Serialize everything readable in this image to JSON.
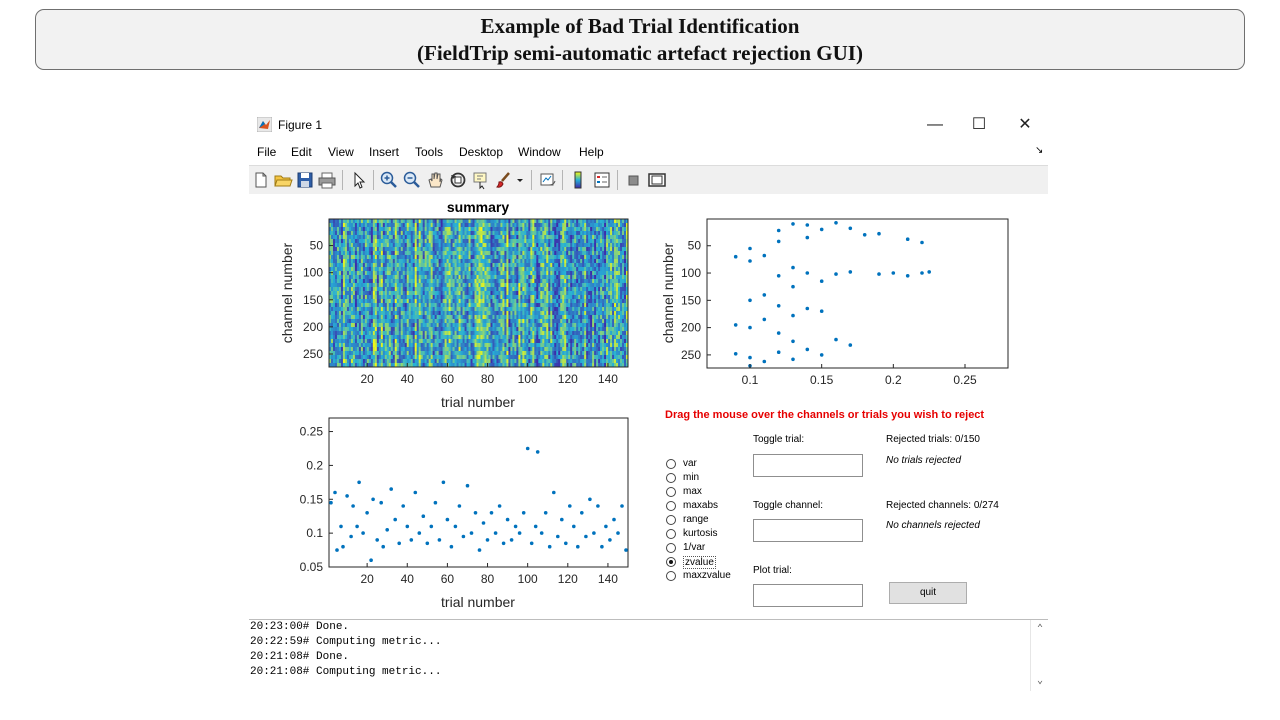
{
  "slide": {
    "title_line1": "Example of Bad Trial Identification",
    "title_line2": "(FieldTrip semi-automatic artefact rejection GUI)"
  },
  "window": {
    "title": "Figure 1",
    "minimize": "—",
    "maximize": "☐",
    "close": "✕"
  },
  "menu": {
    "items": [
      "File",
      "Edit",
      "View",
      "Insert",
      "Tools",
      "Desktop",
      "Window",
      "Help"
    ],
    "dock_arrow": "↘"
  },
  "toolbar": {
    "icons": [
      "new-figure-icon",
      "open-file-icon",
      "save-icon",
      "print-icon",
      "pointer-icon",
      "zoom-in-icon",
      "zoom-out-icon",
      "pan-icon",
      "rotate-3d-icon",
      "data-cursor-icon",
      "brush-icon",
      "link-plot-icon",
      "colorbar-icon",
      "legend-icon",
      "hide-plot-tools-icon",
      "show-plot-tools-icon"
    ]
  },
  "heatmap": {
    "title": "summary",
    "xlabel": "trial number",
    "ylabel": "channel number",
    "xticks": [
      "20",
      "40",
      "60",
      "80",
      "100",
      "120",
      "140"
    ],
    "yticks": [
      "50",
      "100",
      "150",
      "200",
      "250"
    ]
  },
  "panel_channel": {
    "ylabel": "channel number",
    "xticks": [
      "0.1",
      "0.15",
      "0.2",
      "0.25"
    ],
    "yticks": [
      "50",
      "100",
      "150",
      "200",
      "250"
    ]
  },
  "panel_trial": {
    "xlabel": "trial number",
    "xticks": [
      "20",
      "40",
      "60",
      "80",
      "100",
      "120",
      "140"
    ],
    "yticks": [
      "0.25",
      "0.2",
      "0.15",
      "0.1",
      "0.05"
    ]
  },
  "controls": {
    "instruction": "Drag the mouse over the channels or trials you wish to reject",
    "toggle_trial_label": "Toggle trial:",
    "toggle_channel_label": "Toggle channel:",
    "plot_trial_label": "Plot trial:",
    "rejected_trials_label": "Rejected trials: 0/150",
    "no_trials_rejected": "No trials rejected",
    "rejected_channels_label": "Rejected channels: 0/274",
    "no_channels_rejected": "No channels rejected",
    "quit_label": "quit",
    "metrics": [
      "var",
      "min",
      "max",
      "maxabs",
      "range",
      "kurtosis",
      "1/var",
      "zvalue",
      "maxzvalue"
    ],
    "selected_metric": "zvalue",
    "toggle_trial_value": "",
    "toggle_channel_value": "",
    "plot_trial_value": ""
  },
  "console": {
    "lines": [
      "20:23:00# Done.",
      "20:22:59# Computing metric...",
      "20:21:08# Done.",
      "20:21:08# Computing metric..."
    ],
    "scroll_up": "⌃",
    "scroll_down": "⌄"
  },
  "colors": {
    "point": "#0072bd",
    "heat_low": "#3e26a8",
    "heat_mid": "#26b0d6",
    "heat_high": "#f9fb0e",
    "instruction": "#e60000"
  },
  "chart_data": [
    {
      "type": "heatmap",
      "title": "summary",
      "xlabel": "trial number",
      "ylabel": "channel number",
      "xlim": [
        1,
        150
      ],
      "ylim": [
        1,
        274
      ],
      "note_values": "per-trial x per-channel z-value matrix (150 trials x 274 channels)"
    },
    {
      "type": "scatter",
      "title": "",
      "xlabel": "",
      "ylabel": "channel number",
      "xlim": [
        0.07,
        0.28
      ],
      "ylim": [
        1,
        274
      ],
      "y_reversed": true,
      "points": [
        [
          0.13,
          10
        ],
        [
          0.14,
          12
        ],
        [
          0.16,
          8
        ],
        [
          0.15,
          20
        ],
        [
          0.12,
          22
        ],
        [
          0.17,
          18
        ],
        [
          0.19,
          28
        ],
        [
          0.21,
          38
        ],
        [
          0.22,
          44
        ],
        [
          0.18,
          30
        ],
        [
          0.14,
          35
        ],
        [
          0.12,
          42
        ],
        [
          0.1,
          55
        ],
        [
          0.11,
          68
        ],
        [
          0.09,
          70
        ],
        [
          0.1,
          78
        ],
        [
          0.13,
          90
        ],
        [
          0.14,
          100
        ],
        [
          0.12,
          105
        ],
        [
          0.16,
          102
        ],
        [
          0.17,
          98
        ],
        [
          0.19,
          102
        ],
        [
          0.2,
          100
        ],
        [
          0.22,
          100
        ],
        [
          0.225,
          98
        ],
        [
          0.21,
          105
        ],
        [
          0.15,
          115
        ],
        [
          0.13,
          125
        ],
        [
          0.11,
          140
        ],
        [
          0.1,
          150
        ],
        [
          0.12,
          160
        ],
        [
          0.14,
          165
        ],
        [
          0.15,
          170
        ],
        [
          0.13,
          178
        ],
        [
          0.11,
          185
        ],
        [
          0.09,
          195
        ],
        [
          0.1,
          200
        ],
        [
          0.12,
          210
        ],
        [
          0.13,
          225
        ],
        [
          0.16,
          222
        ],
        [
          0.17,
          232
        ],
        [
          0.14,
          240
        ],
        [
          0.12,
          245
        ],
        [
          0.1,
          255
        ],
        [
          0.11,
          262
        ],
        [
          0.13,
          258
        ],
        [
          0.15,
          250
        ],
        [
          0.09,
          248
        ],
        [
          0.1,
          270
        ]
      ]
    },
    {
      "type": "scatter",
      "title": "",
      "xlabel": "trial number",
      "ylabel": "",
      "xlim": [
        1,
        150
      ],
      "ylim": [
        0.05,
        0.27
      ],
      "points": [
        [
          2,
          0.145
        ],
        [
          4,
          0.16
        ],
        [
          5,
          0.075
        ],
        [
          7,
          0.11
        ],
        [
          8,
          0.08
        ],
        [
          10,
          0.155
        ],
        [
          12,
          0.095
        ],
        [
          13,
          0.14
        ],
        [
          15,
          0.11
        ],
        [
          16,
          0.175
        ],
        [
          18,
          0.1
        ],
        [
          20,
          0.13
        ],
        [
          22,
          0.06
        ],
        [
          23,
          0.15
        ],
        [
          25,
          0.09
        ],
        [
          27,
          0.145
        ],
        [
          28,
          0.08
        ],
        [
          30,
          0.105
        ],
        [
          32,
          0.165
        ],
        [
          34,
          0.12
        ],
        [
          36,
          0.085
        ],
        [
          38,
          0.14
        ],
        [
          40,
          0.11
        ],
        [
          42,
          0.09
        ],
        [
          44,
          0.16
        ],
        [
          46,
          0.1
        ],
        [
          48,
          0.125
        ],
        [
          50,
          0.085
        ],
        [
          52,
          0.11
        ],
        [
          54,
          0.145
        ],
        [
          56,
          0.09
        ],
        [
          58,
          0.175
        ],
        [
          60,
          0.12
        ],
        [
          62,
          0.08
        ],
        [
          64,
          0.11
        ],
        [
          66,
          0.14
        ],
        [
          68,
          0.095
        ],
        [
          70,
          0.17
        ],
        [
          72,
          0.1
        ],
        [
          74,
          0.13
        ],
        [
          76,
          0.075
        ],
        [
          78,
          0.115
        ],
        [
          80,
          0.09
        ],
        [
          82,
          0.13
        ],
        [
          84,
          0.1
        ],
        [
          86,
          0.14
        ],
        [
          88,
          0.085
        ],
        [
          90,
          0.12
        ],
        [
          92,
          0.09
        ],
        [
          94,
          0.11
        ],
        [
          96,
          0.1
        ],
        [
          98,
          0.13
        ],
        [
          100,
          0.225
        ],
        [
          102,
          0.085
        ],
        [
          104,
          0.11
        ],
        [
          105,
          0.22
        ],
        [
          107,
          0.1
        ],
        [
          109,
          0.13
        ],
        [
          111,
          0.08
        ],
        [
          113,
          0.16
        ],
        [
          115,
          0.095
        ],
        [
          117,
          0.12
        ],
        [
          119,
          0.085
        ],
        [
          121,
          0.14
        ],
        [
          123,
          0.11
        ],
        [
          125,
          0.08
        ],
        [
          127,
          0.13
        ],
        [
          129,
          0.095
        ],
        [
          131,
          0.15
        ],
        [
          133,
          0.1
        ],
        [
          135,
          0.14
        ],
        [
          137,
          0.08
        ],
        [
          139,
          0.11
        ],
        [
          141,
          0.09
        ],
        [
          143,
          0.12
        ],
        [
          145,
          0.1
        ],
        [
          147,
          0.14
        ],
        [
          149,
          0.075
        ]
      ]
    }
  ]
}
